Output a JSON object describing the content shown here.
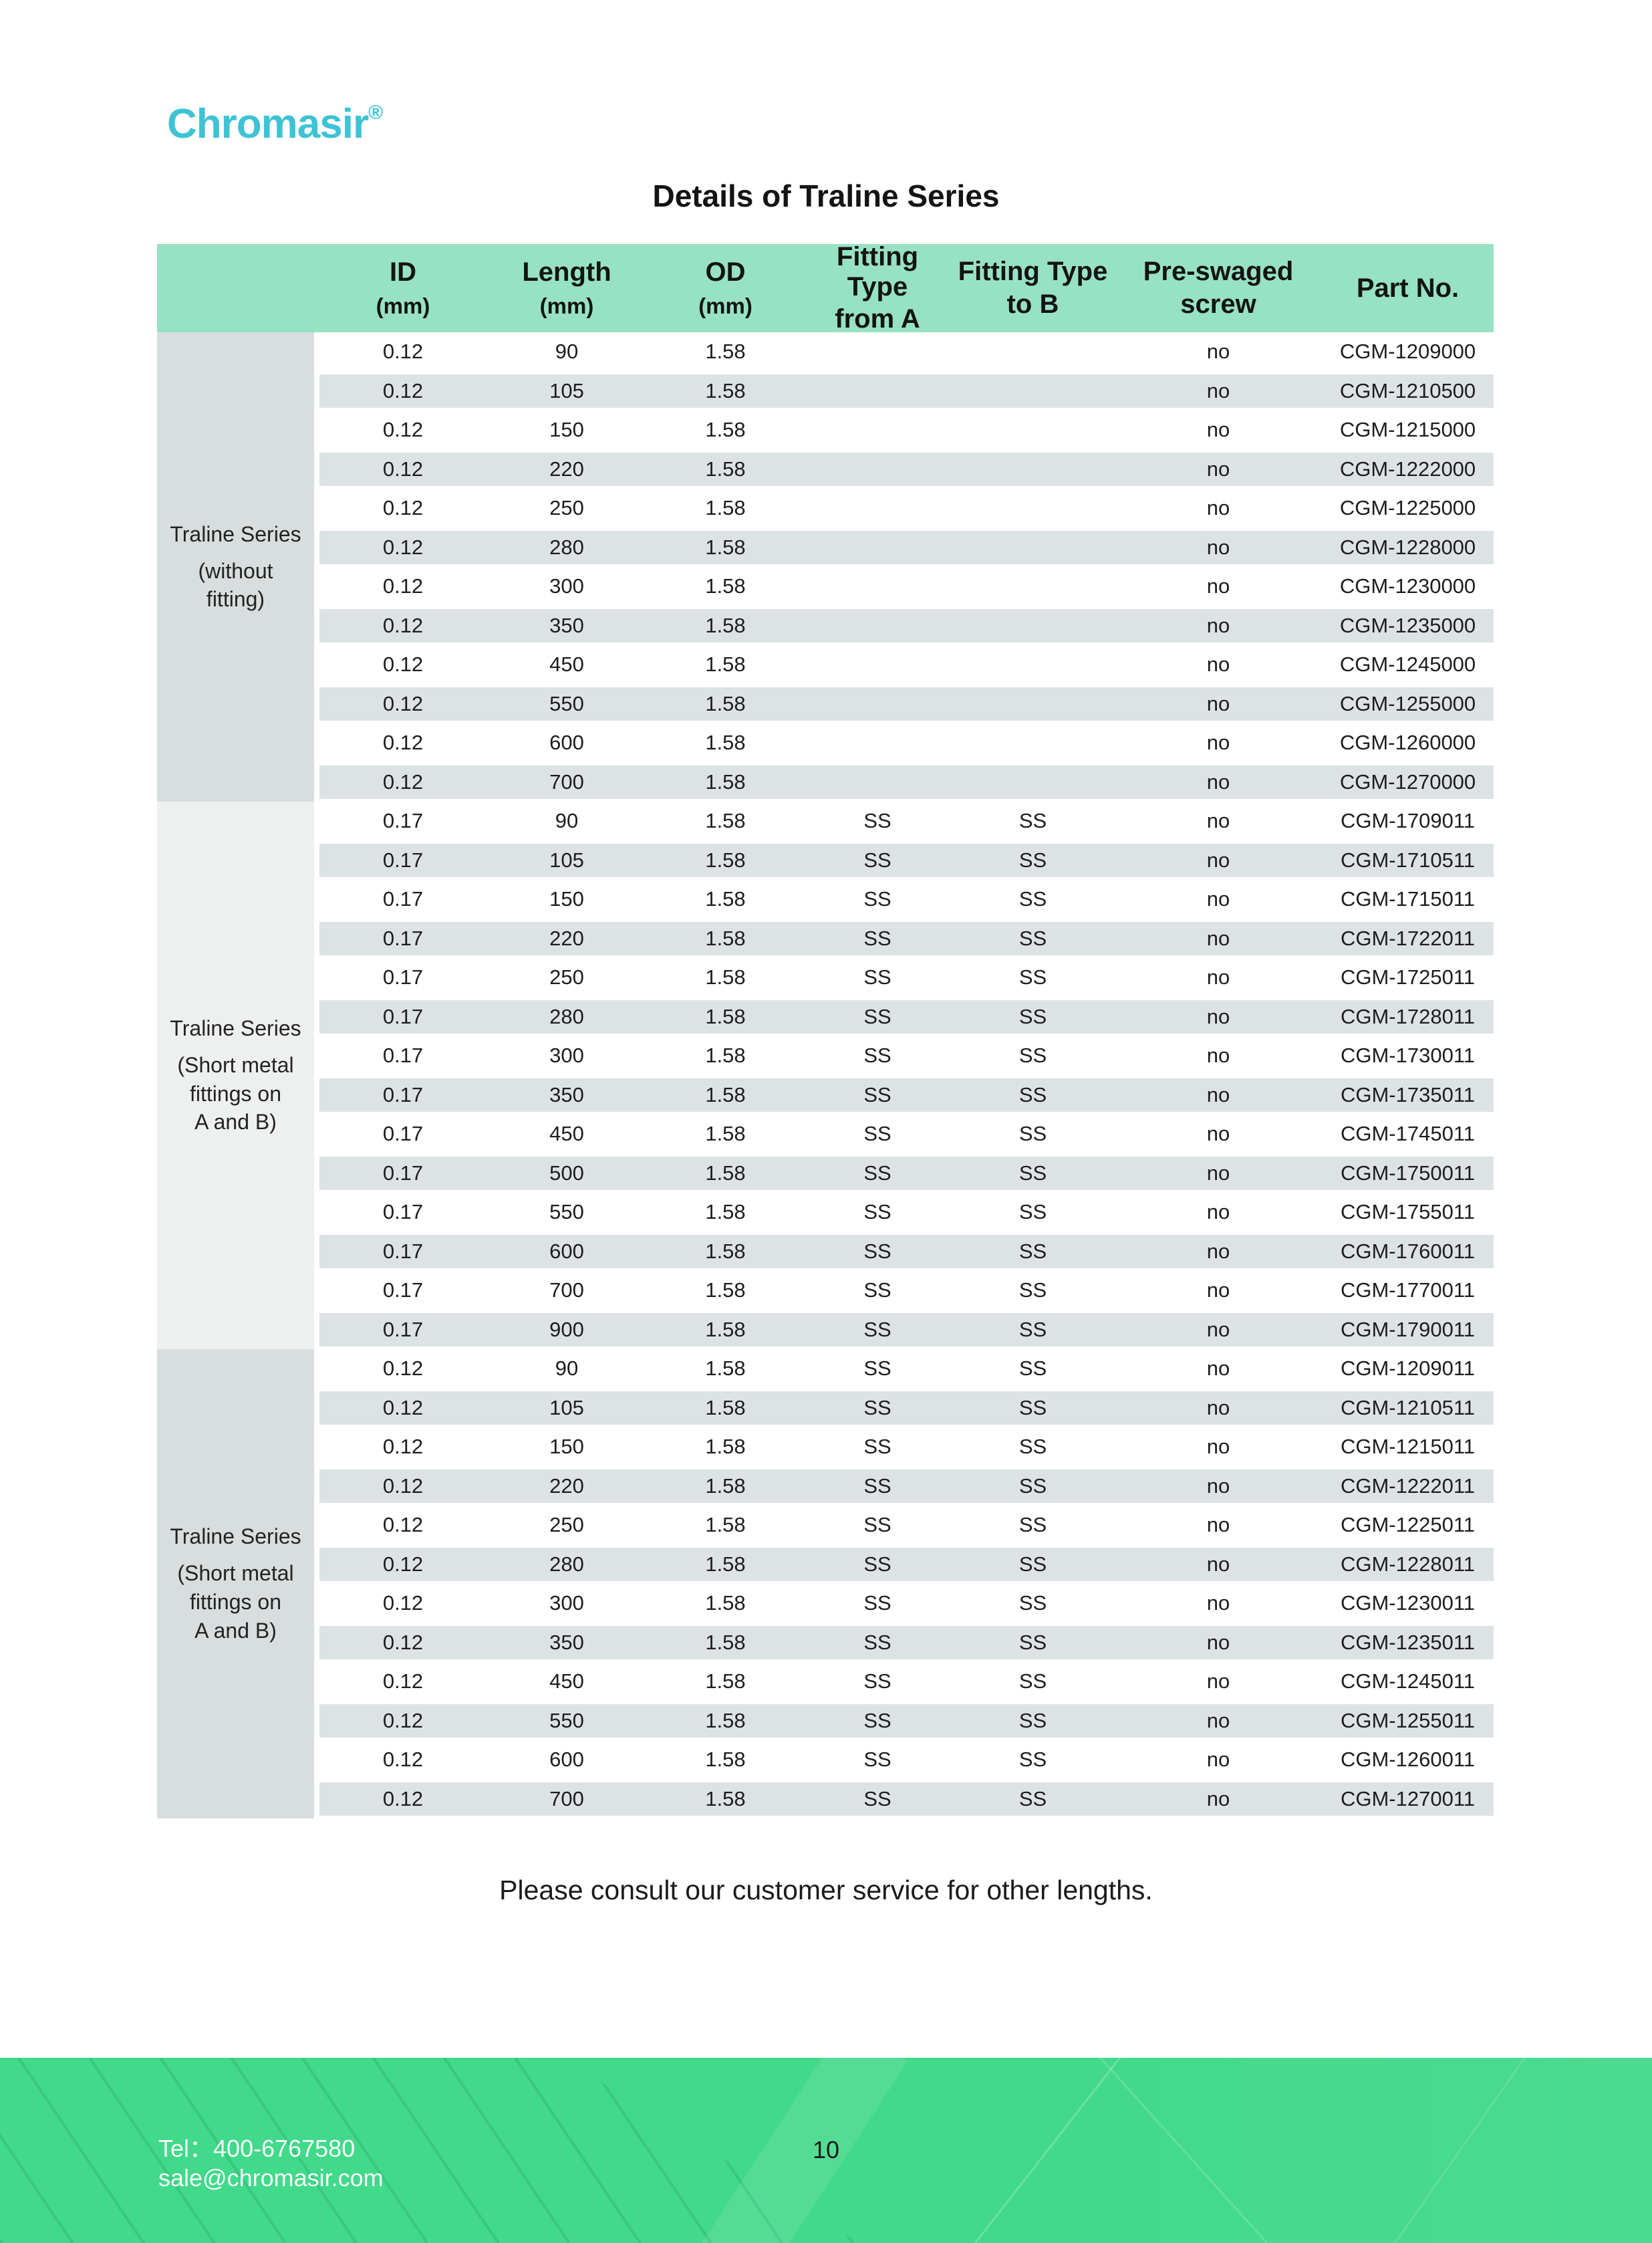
{
  "brand": {
    "logo_text": "Chromasir",
    "registered_mark": "®"
  },
  "title": "Details of Traline Series",
  "table": {
    "columns": [
      {
        "label": "ID",
        "sub": "(mm)"
      },
      {
        "label": "Length",
        "sub": "(mm)"
      },
      {
        "label": "OD",
        "sub": "(mm)"
      },
      {
        "label": "Fitting Type",
        "sub": "from A"
      },
      {
        "label": "Fitting Type",
        "sub": "to B"
      },
      {
        "label": "Pre-swaged",
        "sub": "screw"
      },
      {
        "label": "Part No.",
        "sub": ""
      }
    ],
    "sections": [
      {
        "label_lines": [
          "Traline Series",
          "(without",
          "fitting)"
        ],
        "shade": "dark",
        "rows": [
          [
            "0.12",
            "90",
            "1.58",
            "",
            "",
            "no",
            "CGM-1209000"
          ],
          [
            "0.12",
            "105",
            "1.58",
            "",
            "",
            "no",
            "CGM-1210500"
          ],
          [
            "0.12",
            "150",
            "1.58",
            "",
            "",
            "no",
            "CGM-1215000"
          ],
          [
            "0.12",
            "220",
            "1.58",
            "",
            "",
            "no",
            "CGM-1222000"
          ],
          [
            "0.12",
            "250",
            "1.58",
            "",
            "",
            "no",
            "CGM-1225000"
          ],
          [
            "0.12",
            "280",
            "1.58",
            "",
            "",
            "no",
            "CGM-1228000"
          ],
          [
            "0.12",
            "300",
            "1.58",
            "",
            "",
            "no",
            "CGM-1230000"
          ],
          [
            "0.12",
            "350",
            "1.58",
            "",
            "",
            "no",
            "CGM-1235000"
          ],
          [
            "0.12",
            "450",
            "1.58",
            "",
            "",
            "no",
            "CGM-1245000"
          ],
          [
            "0.12",
            "550",
            "1.58",
            "",
            "",
            "no",
            "CGM-1255000"
          ],
          [
            "0.12",
            "600",
            "1.58",
            "",
            "",
            "no",
            "CGM-1260000"
          ],
          [
            "0.12",
            "700",
            "1.58",
            "",
            "",
            "no",
            "CGM-1270000"
          ]
        ]
      },
      {
        "label_lines": [
          "Traline Series",
          "(Short metal",
          "fittings on",
          "A and B)"
        ],
        "shade": "light",
        "rows": [
          [
            "0.17",
            "90",
            "1.58",
            "SS",
            "SS",
            "no",
            "CGM-1709011"
          ],
          [
            "0.17",
            "105",
            "1.58",
            "SS",
            "SS",
            "no",
            "CGM-1710511"
          ],
          [
            "0.17",
            "150",
            "1.58",
            "SS",
            "SS",
            "no",
            "CGM-1715011"
          ],
          [
            "0.17",
            "220",
            "1.58",
            "SS",
            "SS",
            "no",
            "CGM-1722011"
          ],
          [
            "0.17",
            "250",
            "1.58",
            "SS",
            "SS",
            "no",
            "CGM-1725011"
          ],
          [
            "0.17",
            "280",
            "1.58",
            "SS",
            "SS",
            "no",
            "CGM-1728011"
          ],
          [
            "0.17",
            "300",
            "1.58",
            "SS",
            "SS",
            "no",
            "CGM-1730011"
          ],
          [
            "0.17",
            "350",
            "1.58",
            "SS",
            "SS",
            "no",
            "CGM-1735011"
          ],
          [
            "0.17",
            "450",
            "1.58",
            "SS",
            "SS",
            "no",
            "CGM-1745011"
          ],
          [
            "0.17",
            "500",
            "1.58",
            "SS",
            "SS",
            "no",
            "CGM-1750011"
          ],
          [
            "0.17",
            "550",
            "1.58",
            "SS",
            "SS",
            "no",
            "CGM-1755011"
          ],
          [
            "0.17",
            "600",
            "1.58",
            "SS",
            "SS",
            "no",
            "CGM-1760011"
          ],
          [
            "0.17",
            "700",
            "1.58",
            "SS",
            "SS",
            "no",
            "CGM-1770011"
          ],
          [
            "0.17",
            "900",
            "1.58",
            "SS",
            "SS",
            "no",
            "CGM-1790011"
          ]
        ]
      },
      {
        "label_lines": [
          "Traline Series",
          "(Short metal",
          "fittings on",
          "A and B)"
        ],
        "shade": "dark",
        "rows": [
          [
            "0.12",
            "90",
            "1.58",
            "SS",
            "SS",
            "no",
            "CGM-1209011"
          ],
          [
            "0.12",
            "105",
            "1.58",
            "SS",
            "SS",
            "no",
            "CGM-1210511"
          ],
          [
            "0.12",
            "150",
            "1.58",
            "SS",
            "SS",
            "no",
            "CGM-1215011"
          ],
          [
            "0.12",
            "220",
            "1.58",
            "SS",
            "SS",
            "no",
            "CGM-1222011"
          ],
          [
            "0.12",
            "250",
            "1.58",
            "SS",
            "SS",
            "no",
            "CGM-1225011"
          ],
          [
            "0.12",
            "280",
            "1.58",
            "SS",
            "SS",
            "no",
            "CGM-1228011"
          ],
          [
            "0.12",
            "300",
            "1.58",
            "SS",
            "SS",
            "no",
            "CGM-1230011"
          ],
          [
            "0.12",
            "350",
            "1.58",
            "SS",
            "SS",
            "no",
            "CGM-1235011"
          ],
          [
            "0.12",
            "450",
            "1.58",
            "SS",
            "SS",
            "no",
            "CGM-1245011"
          ],
          [
            "0.12",
            "550",
            "1.58",
            "SS",
            "SS",
            "no",
            "CGM-1255011"
          ],
          [
            "0.12",
            "600",
            "1.58",
            "SS",
            "SS",
            "no",
            "CGM-1260011"
          ],
          [
            "0.12",
            "700",
            "1.58",
            "SS",
            "SS",
            "no",
            "CGM-1270011"
          ]
        ]
      }
    ]
  },
  "note": "Please consult our customer service for other lengths.",
  "footer": {
    "tel": "Tel：400-6767580",
    "email": "sale@chromasir.com",
    "page_number": "10"
  },
  "colors": {
    "logo_teal": "#3ec3d5",
    "table_header_mint": "#97e2c5",
    "row_alt_gray": "#dde3e5",
    "section_label_dark": "#d8dddd",
    "section_label_light": "#eef0f0",
    "footer_green": "#41d98a"
  }
}
